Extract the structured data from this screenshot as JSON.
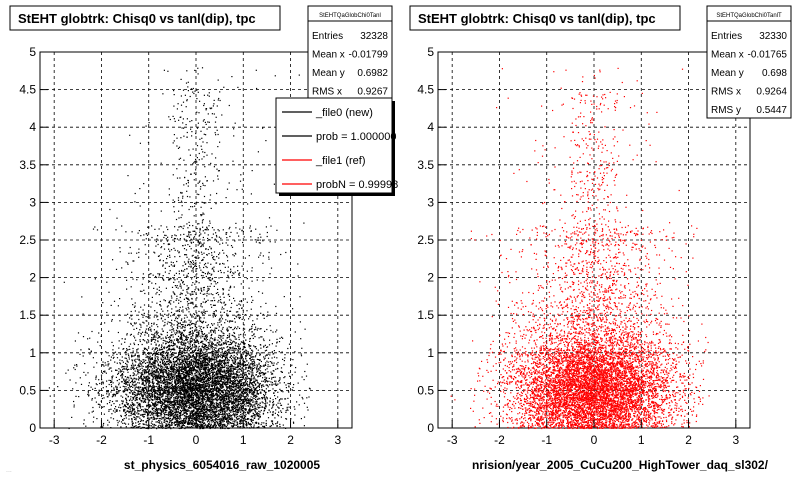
{
  "panels": [
    {
      "title": "StEHT globtrk: Chisq0 vs tanl(dip), tpc",
      "stats": {
        "name": "StEHTQaGlobChi0Tanl",
        "rows": [
          {
            "label": "Entries",
            "value": "32328"
          },
          {
            "label": "Mean x",
            "value": "-0.01799"
          },
          {
            "label": "Mean y",
            "value": "0.6982"
          },
          {
            "label": "RMS x",
            "value": "0.9267"
          }
        ]
      },
      "xlabel": "st_physics_6054016_raw_1020005",
      "color": "#000000"
    },
    {
      "title": "StEHT globtrk: Chisq0 vs tanl(dip), tpc",
      "stats": {
        "name": "StEHTQaGlobChi0TanlT",
        "rows": [
          {
            "label": "Entries",
            "value": "32330"
          },
          {
            "label": "Mean x",
            "value": "-0.01765"
          },
          {
            "label": "Mean y",
            "value": "0.698"
          },
          {
            "label": "RMS x",
            "value": "0.9264"
          },
          {
            "label": "RMS y",
            "value": "0.5447"
          }
        ]
      },
      "xlabel": "nrision/year_2005_CuCu200_HighTower_daq_sl302/",
      "color": "#ff0000"
    }
  ],
  "legend": {
    "entries": [
      {
        "label": "_file0 (new)",
        "color": "#000000"
      },
      {
        "label": "prob = 1.000000",
        "color": "#000000"
      },
      {
        "label": "_file1 (ref)",
        "color": "#ff0000"
      },
      {
        "label": "probN = 0.99998",
        "color": "#ff0000"
      }
    ]
  },
  "footer_text": "...",
  "chart_data": [
    {
      "type": "scatter",
      "title": "StEHT globtrk: Chisq0 vs tanl(dip), tpc",
      "xlabel": "st_physics_6054016_raw_1020005",
      "ylabel": "",
      "xlim": [
        -3.3,
        3.3
      ],
      "ylim": [
        0,
        5
      ],
      "xticks": [
        -3,
        -2,
        -1,
        0,
        1,
        2,
        3
      ],
      "yticks": [
        0,
        0.5,
        1,
        1.5,
        2,
        2.5,
        3,
        3.5,
        4,
        4.5,
        5
      ],
      "grid": true,
      "series": [
        {
          "name": "_file0 (new)",
          "color": "#000000",
          "entries": 32328,
          "mean_x": -0.01799,
          "mean_y": 0.6982,
          "rms_x": 0.9267
        }
      ]
    },
    {
      "type": "scatter",
      "title": "StEHT globtrk: Chisq0 vs tanl(dip), tpc",
      "xlabel": "nrision/year_2005_CuCu200_HighTower_daq_sl302/",
      "ylabel": "",
      "xlim": [
        -3.3,
        3.3
      ],
      "ylim": [
        0,
        5
      ],
      "xticks": [
        -3,
        -2,
        -1,
        0,
        1,
        2,
        3
      ],
      "yticks": [
        0,
        0.5,
        1,
        1.5,
        2,
        2.5,
        3,
        3.5,
        4,
        4.5,
        5
      ],
      "grid": true,
      "series": [
        {
          "name": "_file1 (ref)",
          "color": "#ff0000",
          "entries": 32330,
          "mean_x": -0.01765,
          "mean_y": 0.698,
          "rms_x": 0.9264,
          "rms_y": 0.5447
        }
      ]
    }
  ]
}
